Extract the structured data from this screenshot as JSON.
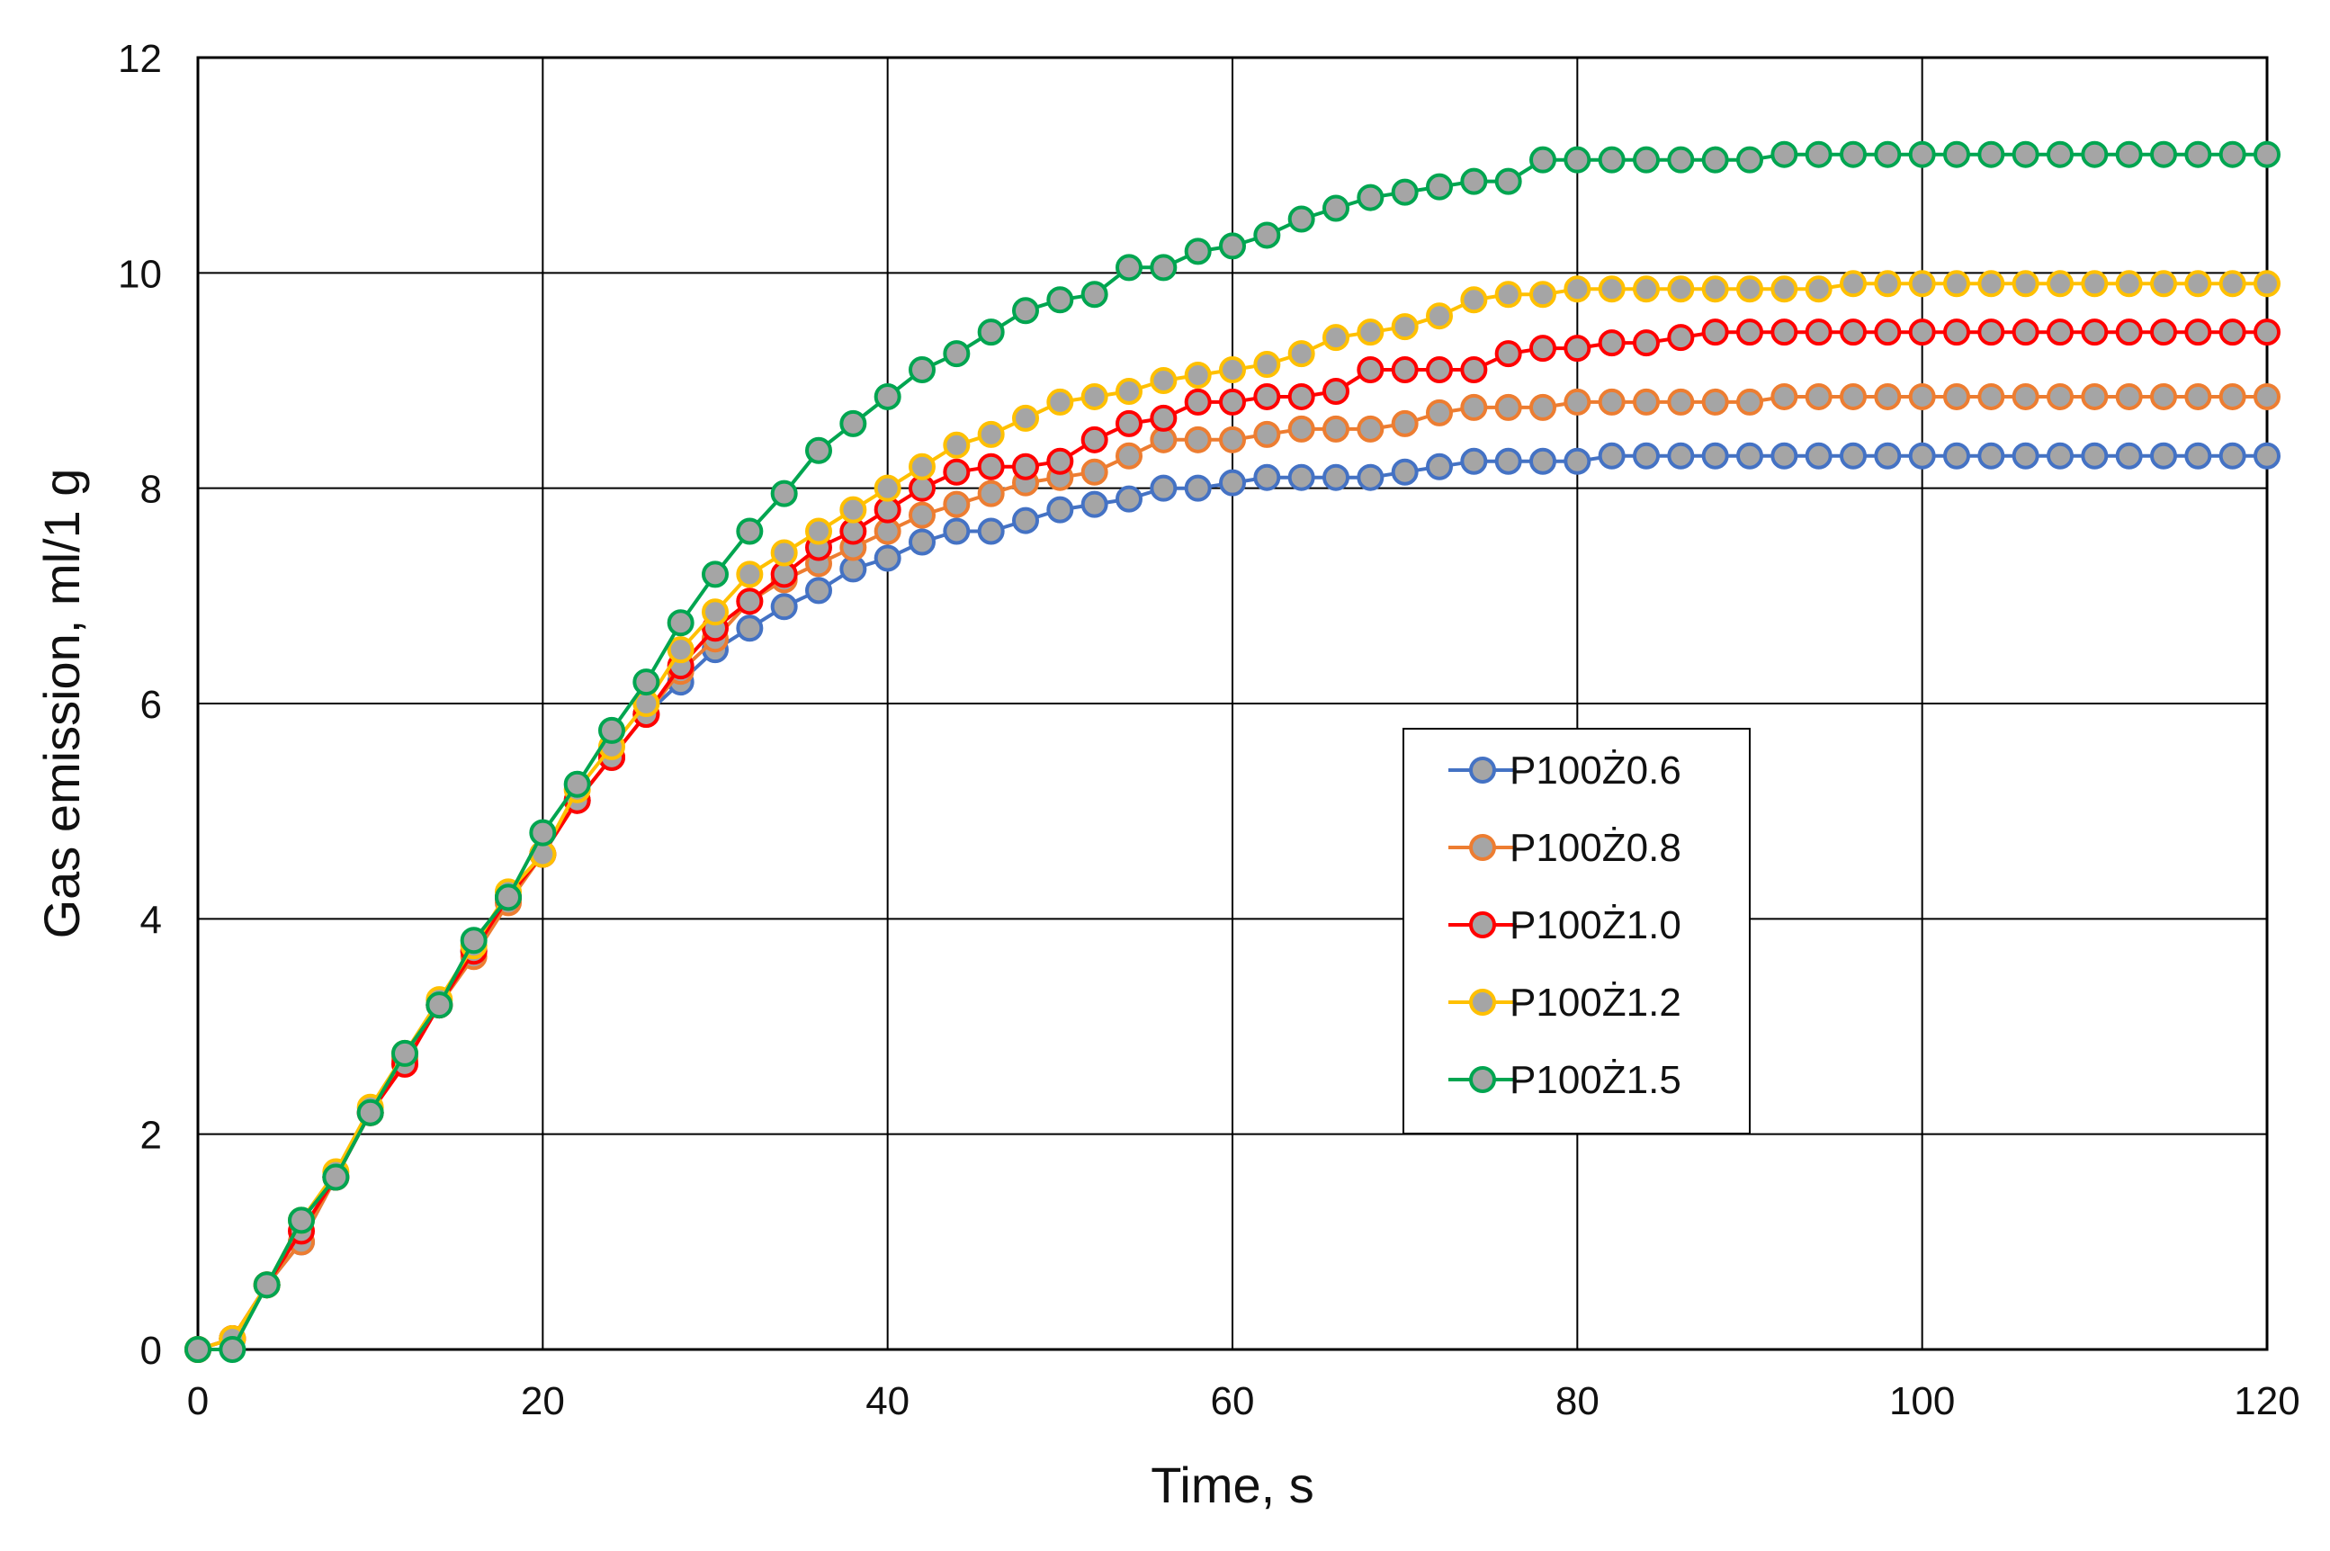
{
  "chart_data": {
    "type": "line",
    "title": "",
    "xlabel": "Time, s",
    "ylabel": "Gas emission, ml/1 g",
    "xlim": [
      0,
      120
    ],
    "ylim": [
      0,
      12
    ],
    "x_ticks": [
      0,
      20,
      40,
      60,
      80,
      100,
      120
    ],
    "y_ticks": [
      0,
      2,
      4,
      6,
      8,
      10,
      12
    ],
    "x_tick_labels": [
      "0",
      "20",
      "40",
      "60",
      "80",
      "100",
      "120"
    ],
    "y_tick_labels": [
      "0",
      "2",
      "4",
      "6",
      "8",
      "10",
      "12"
    ],
    "grid": true,
    "legend_position": "center-right",
    "x": [
      0,
      2,
      4,
      6,
      8,
      10,
      12,
      14,
      16,
      18,
      20,
      22,
      24,
      26,
      28,
      30,
      32,
      34,
      36,
      38,
      40,
      42,
      44,
      46,
      48,
      50,
      52,
      54,
      56,
      58,
      60,
      62,
      64,
      66,
      68,
      70,
      72,
      74,
      76,
      78,
      80,
      82,
      84,
      86,
      88,
      90,
      92,
      94,
      96,
      98,
      100,
      102,
      104,
      106,
      108,
      110,
      112,
      114,
      116,
      118,
      120
    ],
    "series": [
      {
        "name": "P100Ż0.6",
        "line_color": "#4472C4",
        "marker_fill": "#A5A5A5",
        "values": [
          0,
          0.1,
          0.6,
          1.0,
          1.6,
          2.2,
          2.7,
          3.2,
          3.7,
          4.2,
          4.6,
          5.1,
          5.5,
          5.9,
          6.2,
          6.5,
          6.7,
          6.9,
          7.05,
          7.25,
          7.35,
          7.5,
          7.6,
          7.6,
          7.7,
          7.8,
          7.85,
          7.9,
          8.0,
          8.0,
          8.05,
          8.1,
          8.1,
          8.1,
          8.1,
          8.15,
          8.2,
          8.25,
          8.25,
          8.25,
          8.25,
          8.3,
          8.3,
          8.3,
          8.3,
          8.3,
          8.3,
          8.3,
          8.3,
          8.3,
          8.3,
          8.3,
          8.3,
          8.3,
          8.3,
          8.3,
          8.3,
          8.3,
          8.3,
          8.3,
          8.3
        ]
      },
      {
        "name": "P100Ż0.8",
        "line_color": "#ED7D31",
        "marker_fill": "#A5A5A5",
        "values": [
          0,
          0.1,
          0.6,
          1.0,
          1.6,
          2.2,
          2.7,
          3.2,
          3.65,
          4.15,
          4.6,
          5.1,
          5.5,
          5.9,
          6.3,
          6.6,
          6.95,
          7.15,
          7.3,
          7.45,
          7.6,
          7.75,
          7.85,
          7.95,
          8.05,
          8.1,
          8.15,
          8.3,
          8.45,
          8.45,
          8.45,
          8.5,
          8.55,
          8.55,
          8.55,
          8.6,
          8.7,
          8.75,
          8.75,
          8.75,
          8.8,
          8.8,
          8.8,
          8.8,
          8.8,
          8.8,
          8.85,
          8.85,
          8.85,
          8.85,
          8.85,
          8.85,
          8.85,
          8.85,
          8.85,
          8.85,
          8.85,
          8.85,
          8.85,
          8.85,
          8.85
        ]
      },
      {
        "name": "P100Ż1.0",
        "line_color": "#FF0000",
        "marker_fill": "#A5A5A5",
        "values": [
          0,
          0.1,
          0.6,
          1.1,
          1.6,
          2.2,
          2.65,
          3.2,
          3.7,
          4.2,
          4.6,
          5.1,
          5.5,
          5.9,
          6.35,
          6.7,
          6.95,
          7.2,
          7.45,
          7.6,
          7.8,
          8.0,
          8.15,
          8.2,
          8.2,
          8.25,
          8.45,
          8.6,
          8.65,
          8.8,
          8.8,
          8.85,
          8.85,
          8.9,
          9.1,
          9.1,
          9.1,
          9.1,
          9.25,
          9.3,
          9.3,
          9.35,
          9.35,
          9.4,
          9.45,
          9.45,
          9.45,
          9.45,
          9.45,
          9.45,
          9.45,
          9.45,
          9.45,
          9.45,
          9.45,
          9.45,
          9.45,
          9.45,
          9.45,
          9.45,
          9.45
        ]
      },
      {
        "name": "P100Ż1.2",
        "line_color": "#FFC000",
        "marker_fill": "#A5A5A5",
        "values": [
          0,
          0.1,
          0.6,
          1.2,
          1.65,
          2.25,
          2.75,
          3.25,
          3.75,
          4.25,
          4.6,
          5.2,
          5.6,
          6.0,
          6.5,
          6.85,
          7.2,
          7.4,
          7.6,
          7.8,
          8.0,
          8.2,
          8.4,
          8.5,
          8.65,
          8.8,
          8.85,
          8.9,
          9.0,
          9.05,
          9.1,
          9.15,
          9.25,
          9.4,
          9.45,
          9.5,
          9.6,
          9.75,
          9.8,
          9.8,
          9.85,
          9.85,
          9.85,
          9.85,
          9.85,
          9.85,
          9.85,
          9.85,
          9.9,
          9.9,
          9.9,
          9.9,
          9.9,
          9.9,
          9.9,
          9.9,
          9.9,
          9.9,
          9.9,
          9.9,
          9.9
        ]
      },
      {
        "name": "P100Ż1.5",
        "line_color": "#00A550",
        "marker_fill": "#A5A5A5",
        "values": [
          0,
          0,
          0.6,
          1.2,
          1.6,
          2.2,
          2.75,
          3.2,
          3.8,
          4.2,
          4.8,
          5.25,
          5.75,
          6.2,
          6.75,
          7.2,
          7.6,
          7.95,
          8.35,
          8.6,
          8.85,
          9.1,
          9.25,
          9.45,
          9.65,
          9.75,
          9.8,
          10.05,
          10.05,
          10.2,
          10.25,
          10.35,
          10.5,
          10.6,
          10.7,
          10.75,
          10.8,
          10.85,
          10.85,
          11.05,
          11.05,
          11.05,
          11.05,
          11.05,
          11.05,
          11.05,
          11.1,
          11.1,
          11.1,
          11.1,
          11.1,
          11.1,
          11.1,
          11.1,
          11.1,
          11.1,
          11.1,
          11.1,
          11.1,
          11.1,
          11.1
        ]
      }
    ]
  }
}
